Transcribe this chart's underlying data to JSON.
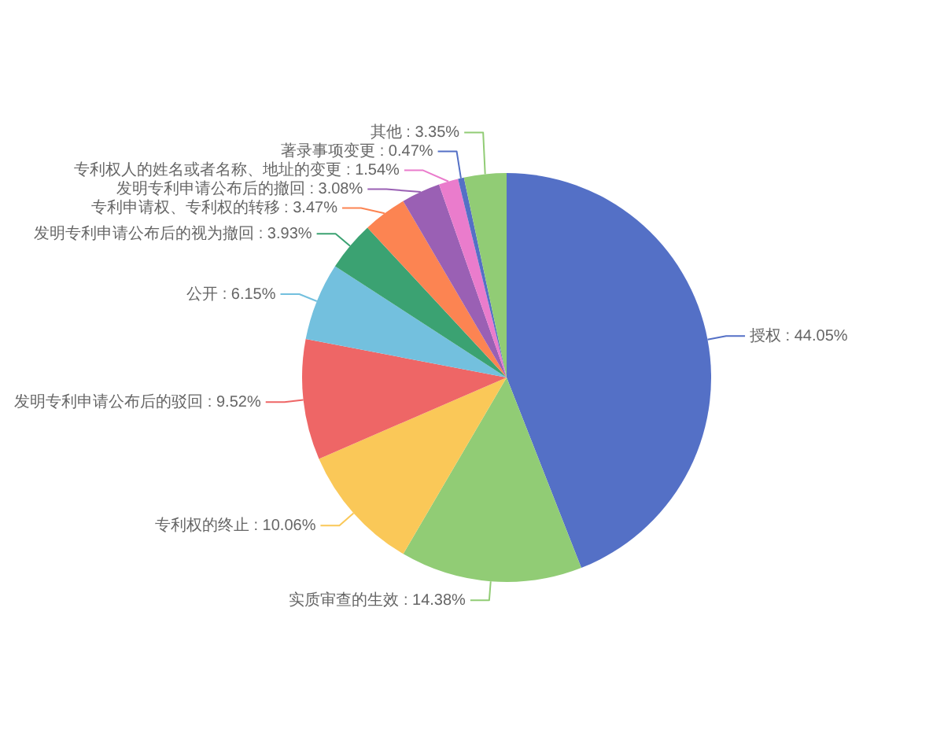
{
  "chart_data": {
    "type": "pie",
    "categories": [
      "授权",
      "实质审查的生效",
      "专利权的终止",
      "发明专利申请公布后的驳回",
      "公开",
      "发明专利申请公布后的视为撤回",
      "专利申请权、专利权的转移",
      "发明专利申请公布后的撤回",
      "专利权人的姓名或者名称、地址的变更",
      "著录事项变更",
      "其他"
    ],
    "values": [
      44.05,
      14.38,
      10.06,
      9.52,
      6.15,
      3.93,
      3.47,
      3.08,
      1.54,
      0.47,
      3.35
    ],
    "value_labels": [
      "44.05%",
      "14.38%",
      "10.06%",
      "9.52%",
      "6.15%",
      "3.93%",
      "3.47%",
      "3.08%",
      "1.54%",
      "0.47%",
      "3.35%"
    ],
    "colors": [
      "#5470c6",
      "#91cc75",
      "#fac858",
      "#ee6666",
      "#73c0de",
      "#3ba272",
      "#fc8452",
      "#9a60b4",
      "#ea7ccc",
      "#5470c6",
      "#91cc75"
    ]
  }
}
